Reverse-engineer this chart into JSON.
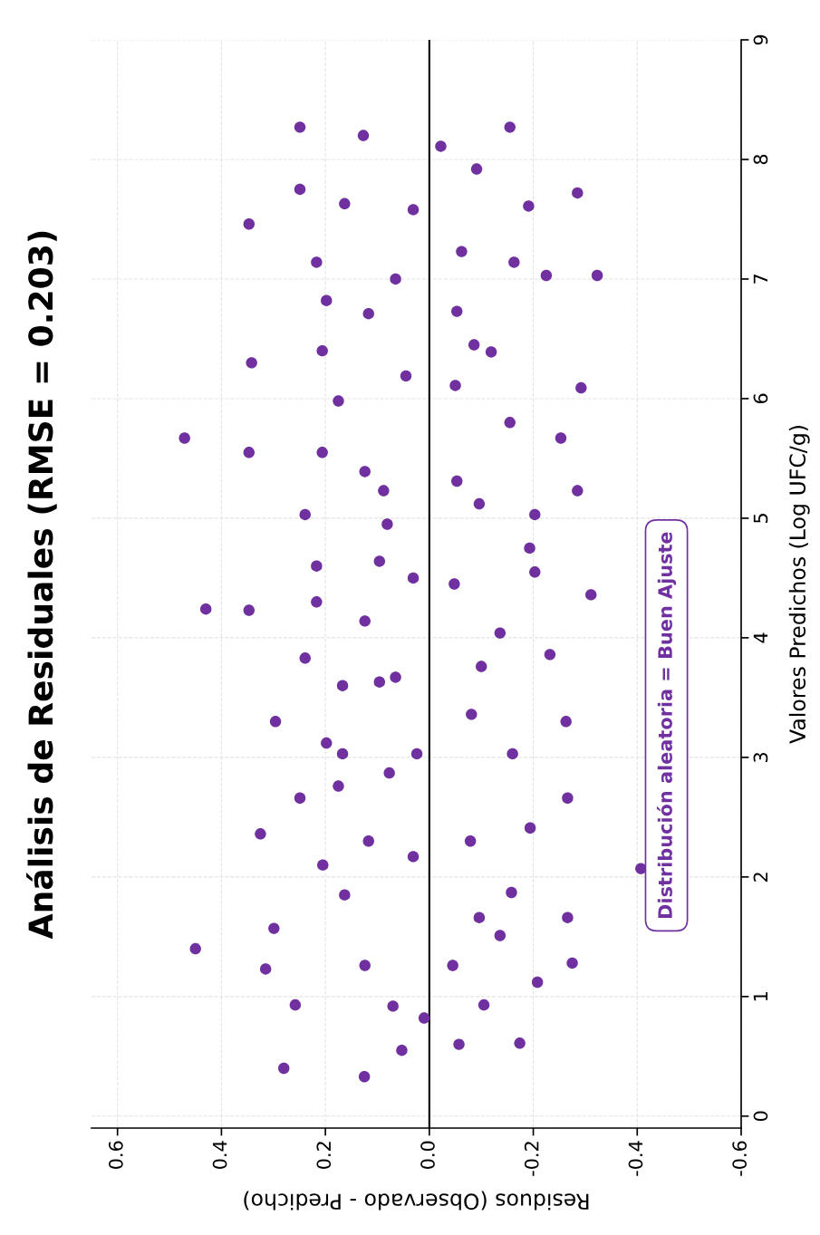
{
  "chart_data": {
    "type": "scatter",
    "title": "Análisis de Residuales (RMSE = 0.203)",
    "xlabel": "Residuos (Observado - Predicho)",
    "ylabel": "Valores Predichos (Log UFC/g)",
    "annotations": [
      "Distribución aleatoria = Buen Ajuste"
    ],
    "xlim": [
      0.65,
      -0.6
    ],
    "xticks": [
      {
        "value": 0.6,
        "label": "0.6"
      },
      {
        "value": 0.4,
        "label": "0.4"
      },
      {
        "value": 0.2,
        "label": "0.2"
      },
      {
        "value": 0.0,
        "label": "0.0"
      },
      {
        "value": -0.2,
        "label": "-0.2"
      },
      {
        "value": -0.4,
        "label": "-0.4"
      },
      {
        "value": -0.6,
        "label": "-0.6"
      }
    ],
    "ylim": [
      -0.1,
      9
    ],
    "yticks": [
      0,
      1,
      2,
      3,
      4,
      5,
      6,
      7,
      8,
      9
    ],
    "grid": true,
    "marker": "circle",
    "ref_lines": [
      {
        "axis": "x",
        "value": 0,
        "color": "#000000"
      }
    ],
    "series": [
      {
        "color": "#7030a0",
        "x": [
          0.45,
          0.28,
          0.125,
          0.053,
          0.01,
          0.07,
          0.258,
          0.315,
          0.299,
          0.124,
          -0.057,
          -0.174,
          -0.105,
          -0.045,
          -0.208,
          -0.275,
          -0.136,
          -0.096,
          -0.266,
          -0.158,
          0.163,
          0.205,
          0.031,
          0.117,
          0.325,
          -0.079,
          -0.194,
          -0.407,
          0.249,
          0.175,
          0.077,
          0.024,
          0.167,
          0.198,
          0.296,
          -0.266,
          -0.16,
          -0.263,
          -0.081,
          -0.1,
          -0.232,
          -0.136,
          0.167,
          0.096,
          0.065,
          0.239,
          0.43,
          0.347,
          0.124,
          0.217,
          0.217,
          0.096,
          0.031,
          -0.048,
          -0.311,
          -0.203,
          -0.193,
          -0.203,
          -0.096,
          -0.285,
          -0.053,
          -0.253,
          -0.155,
          0.081,
          0.088,
          0.124,
          0.239,
          0.206,
          0.347,
          0.471,
          0.175,
          0.045,
          -0.05,
          -0.292,
          -0.119,
          -0.086,
          0.342,
          0.206,
          0.117,
          0.198,
          -0.053,
          0.065,
          -0.225,
          -0.323,
          -0.163,
          -0.062,
          0.217,
          0.347,
          0.031,
          0.163,
          -0.191,
          -0.285,
          0.249,
          -0.091,
          -0.022,
          0.127,
          0.249,
          -0.155
        ],
        "values": [
          1.4,
          0.4,
          0.33,
          0.55,
          0.82,
          0.92,
          0.93,
          1.23,
          1.57,
          1.26,
          0.6,
          0.61,
          0.93,
          1.26,
          1.12,
          1.28,
          1.51,
          1.66,
          1.66,
          1.87,
          1.85,
          2.1,
          2.17,
          2.3,
          2.36,
          2.3,
          2.41,
          2.07,
          2.66,
          2.76,
          2.87,
          3.03,
          3.03,
          3.12,
          3.3,
          2.66,
          3.03,
          3.3,
          3.36,
          3.76,
          3.86,
          4.04,
          3.6,
          3.63,
          3.67,
          3.83,
          4.24,
          4.23,
          4.14,
          4.3,
          4.6,
          4.64,
          4.5,
          4.45,
          4.36,
          4.55,
          4.75,
          5.03,
          5.12,
          5.23,
          5.31,
          5.67,
          5.8,
          4.95,
          5.23,
          5.39,
          5.03,
          5.55,
          5.55,
          5.67,
          5.98,
          6.19,
          6.11,
          6.09,
          6.39,
          6.45,
          6.3,
          6.4,
          6.71,
          6.82,
          6.73,
          7.0,
          7.03,
          7.03,
          7.14,
          7.23,
          7.14,
          7.46,
          7.58,
          7.63,
          7.61,
          7.72,
          7.75,
          7.92,
          8.11,
          8.2,
          8.27,
          8.27
        ]
      }
    ]
  }
}
